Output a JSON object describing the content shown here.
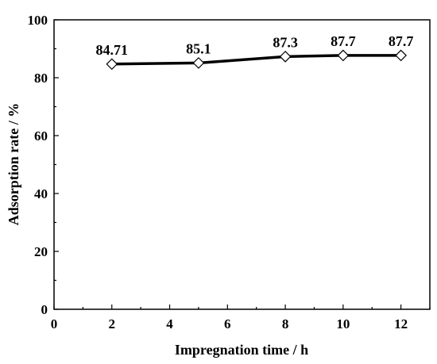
{
  "chart_data": {
    "type": "line",
    "x": [
      2,
      5,
      8,
      10,
      12
    ],
    "values": [
      84.71,
      85.1,
      87.3,
      87.7,
      87.7
    ],
    "data_labels": [
      "84.71",
      "85.1",
      "87.3",
      "87.7",
      "87.7"
    ],
    "xlabel": "Impregnation time / h",
    "ylabel": "Adsorption rate / %",
    "xlim": [
      0,
      13
    ],
    "ylim": [
      0,
      100
    ],
    "x_ticks": [
      0,
      2,
      4,
      6,
      8,
      10,
      12
    ],
    "x_tick_labels": [
      "0",
      "2",
      "4",
      "6",
      "8",
      "10",
      "12"
    ],
    "y_ticks": [
      0,
      20,
      40,
      60,
      80,
      100
    ],
    "y_tick_labels": [
      "0",
      "20",
      "40",
      "60",
      "80",
      "100"
    ],
    "marker": "open-diamond",
    "line_color": "#000000",
    "grid": false,
    "legend": "none"
  }
}
